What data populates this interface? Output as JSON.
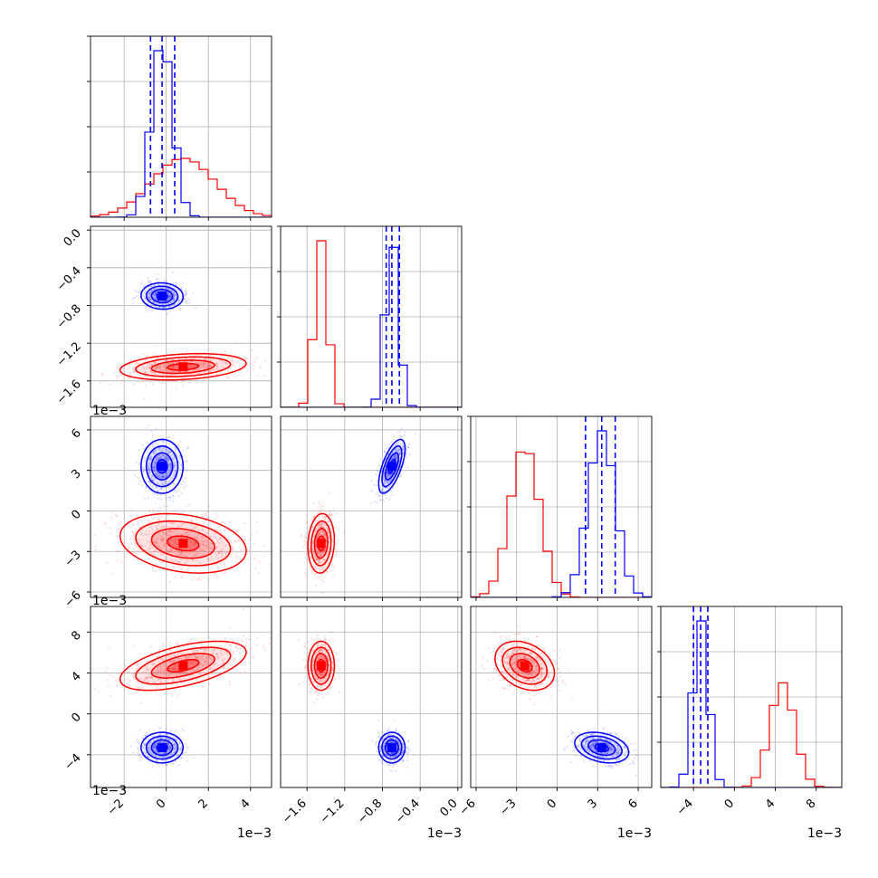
{
  "chart_data": {
    "type": "corner",
    "colors": {
      "red_series": "#ff0000",
      "blue_series": "#0000ff",
      "grid": "#b0b0b0"
    },
    "grid": true,
    "offset_label": "1e−3",
    "params": [
      {
        "range": [
          -3.6,
          5.0
        ],
        "ticks": [
          -2,
          0,
          2,
          4
        ],
        "tick_labels": [
          "−2",
          "0",
          "2",
          "4"
        ]
      },
      {
        "range": [
          -1.88,
          0.04
        ],
        "ticks": [
          -1.6,
          -1.2,
          -0.8,
          -0.4,
          0.0
        ],
        "tick_labels": [
          "−1.6",
          "−1.2",
          "−0.8",
          "−0.4",
          "0.0"
        ]
      },
      {
        "range": [
          -6.4,
          7.0
        ],
        "ticks": [
          -6,
          -3,
          0,
          3,
          6
        ],
        "tick_labels": [
          "−6",
          "−3",
          "0",
          "3",
          "6"
        ]
      },
      {
        "range": [
          -7.2,
          10.5
        ],
        "ticks": [
          -4,
          0,
          4,
          8
        ],
        "tick_labels": [
          "−4",
          "0",
          "4",
          "8"
        ]
      }
    ],
    "series": [
      {
        "color": "red",
        "mean": [
          0.8,
          -1.45,
          -2.4,
          4.7
        ],
        "sd": [
          1.5,
          0.07,
          1.1,
          1.2
        ]
      },
      {
        "color": "blue",
        "mean": [
          -0.2,
          -0.7,
          3.3,
          -3.3
        ],
        "sd": [
          0.5,
          0.07,
          1.0,
          0.75
        ]
      }
    ],
    "quantiles_blue": [
      [
        -0.75,
        -0.2,
        0.4
      ],
      [
        -0.76,
        -0.7,
        -0.62
      ],
      [
        2.1,
        3.3,
        4.3
      ],
      [
        -4.0,
        -3.3,
        -2.6
      ]
    ]
  }
}
